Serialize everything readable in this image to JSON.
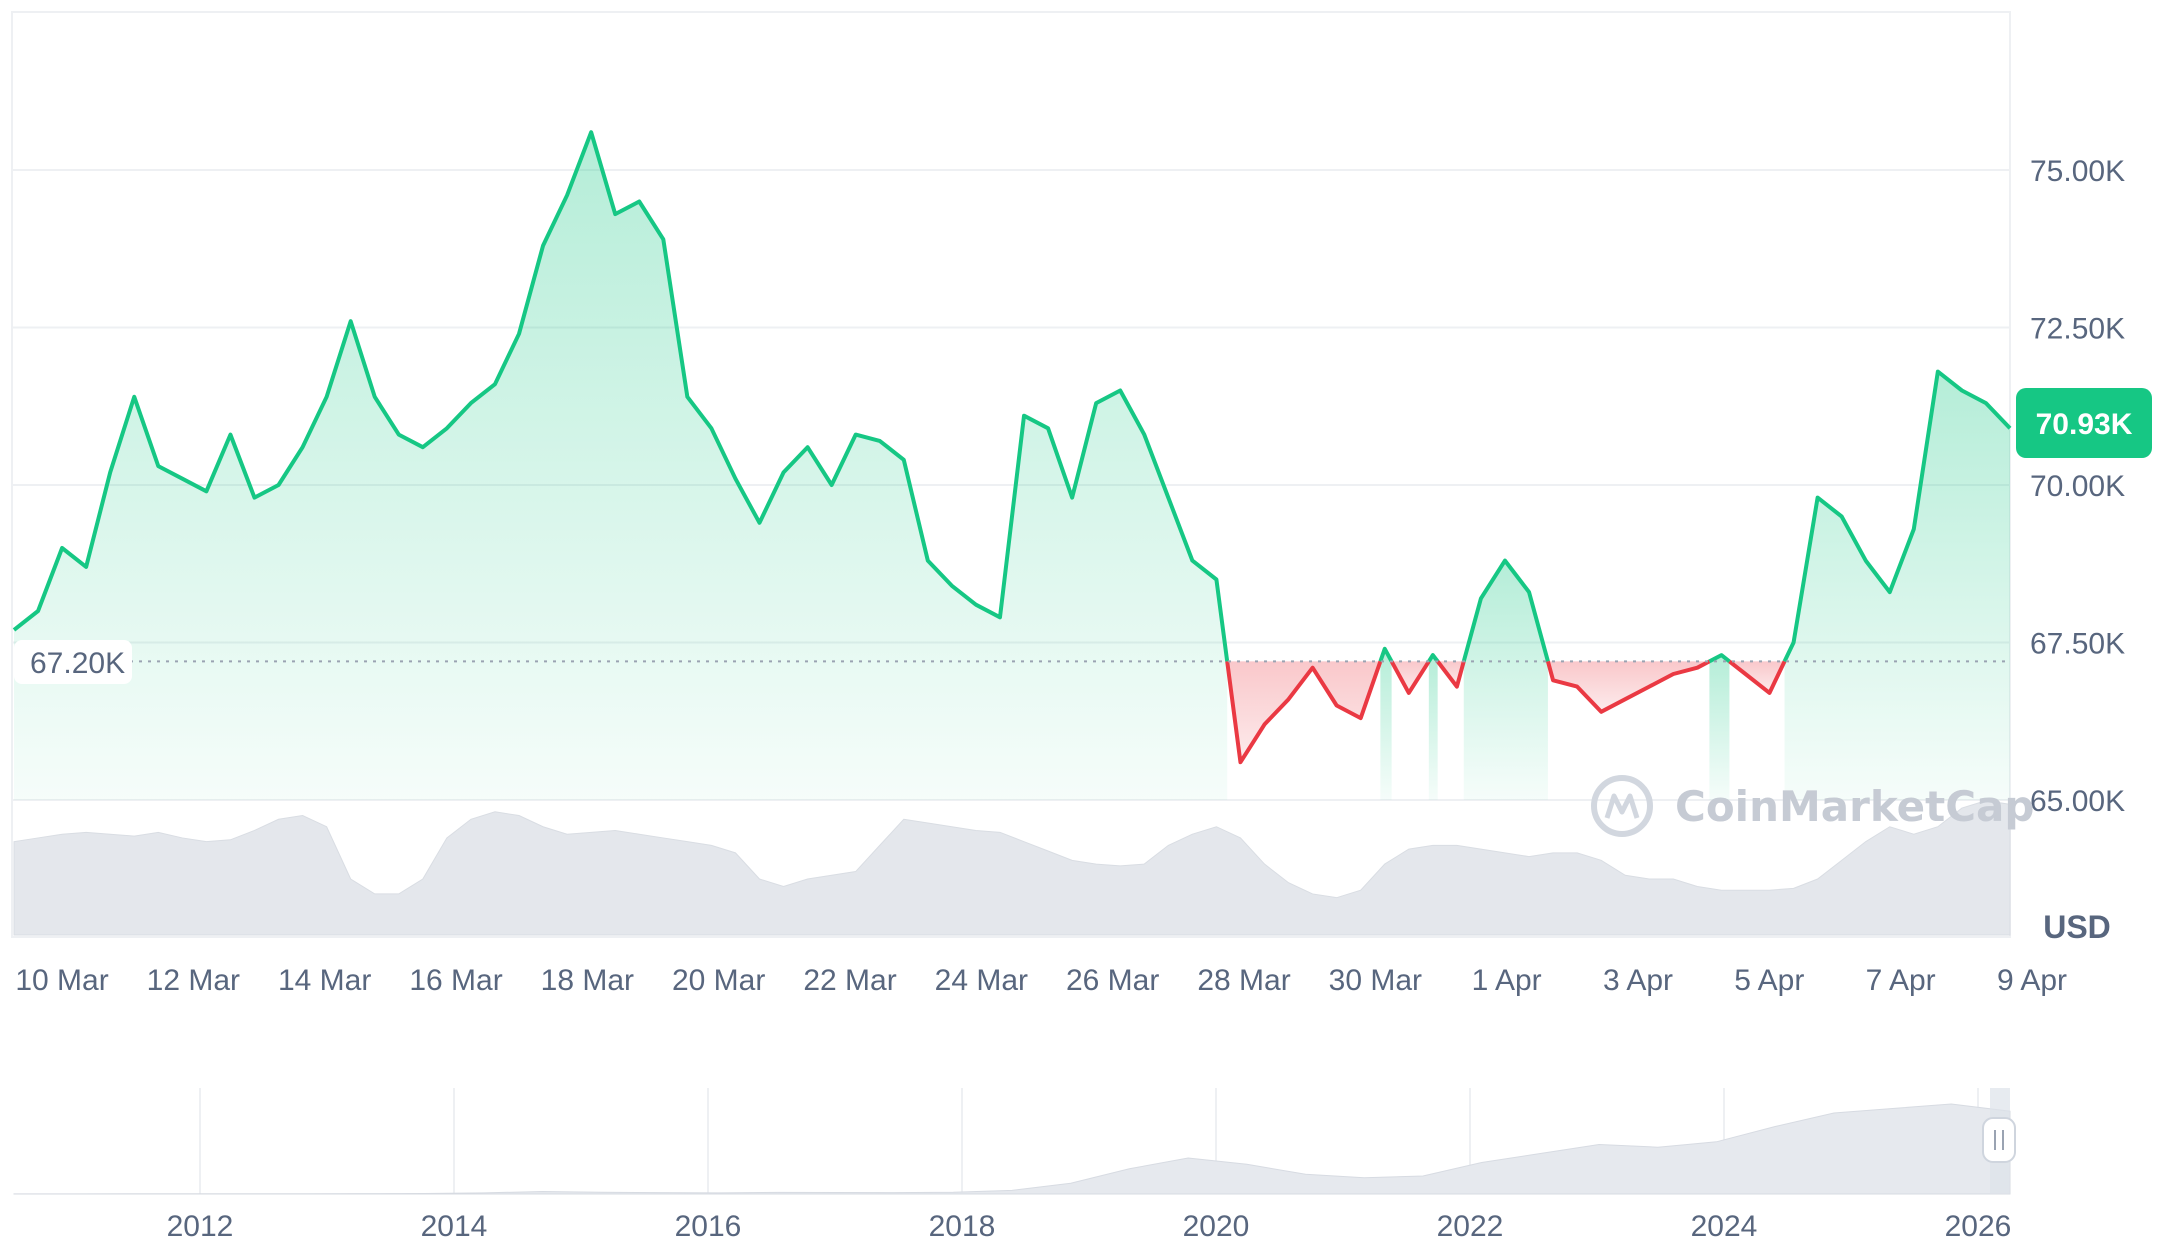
{
  "chart_data": {
    "type": "area",
    "title": "",
    "currency": "USD",
    "watermark": "CoinMarketCap",
    "baseline": {
      "value": 67200,
      "label": "67.20K"
    },
    "current": {
      "value": 70930,
      "label": "70.93K"
    },
    "ylim": [
      64000,
      77000
    ],
    "yticks": [
      {
        "value": 75000,
        "label": "75.00K"
      },
      {
        "value": 72500,
        "label": "72.50K"
      },
      {
        "value": 70000,
        "label": "70.00K"
      },
      {
        "value": 67500,
        "label": "67.50K"
      },
      {
        "value": 65000,
        "label": "65.00K"
      }
    ],
    "x_start": "10 Mar",
    "x_end": "9 Apr",
    "xticks": [
      "10 Mar",
      "12 Mar",
      "14 Mar",
      "16 Mar",
      "18 Mar",
      "20 Mar",
      "22 Mar",
      "24 Mar",
      "26 Mar",
      "28 Mar",
      "30 Mar",
      "1 Apr",
      "3 Apr",
      "5 Apr",
      "7 Apr",
      "9 Apr"
    ],
    "series": [
      {
        "values": [
          67700,
          68000,
          69000,
          68700,
          70200,
          71400,
          70300,
          70100,
          69900,
          70800,
          69800,
          70000,
          70600,
          71400,
          72600,
          71400,
          70800,
          70600,
          70900,
          71300,
          71600,
          72400,
          73800,
          74600,
          75600,
          74300,
          74500,
          73900,
          71400,
          70900,
          70100,
          69400,
          70200,
          70600,
          70000,
          70800,
          70700,
          70400,
          68800,
          68400,
          68100,
          67900,
          71100,
          70900,
          69800,
          71300,
          71500,
          70800,
          69800,
          68800,
          68500,
          65600,
          66200,
          66600,
          67100,
          66500,
          66300,
          67400,
          66700,
          67300,
          66800,
          68200,
          68800,
          68300,
          66900,
          66800,
          66400,
          66600,
          66800,
          67000,
          67100,
          67300,
          67000,
          66700,
          67500,
          69800,
          69500,
          68800,
          68300,
          69300,
          71800,
          71500,
          71300,
          70900
        ]
      }
    ],
    "volume": [
      50,
      52,
      54,
      55,
      54,
      53,
      55,
      52,
      50,
      51,
      56,
      62,
      64,
      58,
      30,
      22,
      22,
      30,
      52,
      62,
      66,
      64,
      58,
      54,
      55,
      56,
      54,
      52,
      50,
      48,
      44,
      30,
      26,
      30,
      32,
      34,
      48,
      62,
      60,
      58,
      56,
      55,
      50,
      45,
      40,
      38,
      37,
      38,
      48,
      54,
      58,
      52,
      38,
      28,
      22,
      20,
      24,
      38,
      46,
      48,
      48,
      46,
      44,
      42,
      44,
      44,
      40,
      32,
      30,
      30,
      26,
      24,
      24,
      24,
      25,
      30,
      40,
      50,
      58,
      54,
      58,
      68,
      72,
      70
    ],
    "navigator": {
      "xticks": [
        "2012",
        "2014",
        "2016",
        "2018",
        "2020",
        "2022",
        "2024",
        "2026"
      ],
      "values": [
        0.2,
        0.2,
        0.25,
        0.3,
        0.3,
        0.3,
        0.35,
        0.5,
        1.2,
        2.8,
        2.0,
        1.5,
        1.2,
        1.8,
        1.6,
        1.5,
        2.0,
        4.0,
        12.0,
        28.0,
        40.0,
        33.0,
        22.0,
        18.0,
        20.0,
        35.0,
        45.0,
        55.0,
        52.0,
        58.0,
        75.0,
        90.0,
        95.0,
        100.0,
        92.0
      ]
    }
  }
}
